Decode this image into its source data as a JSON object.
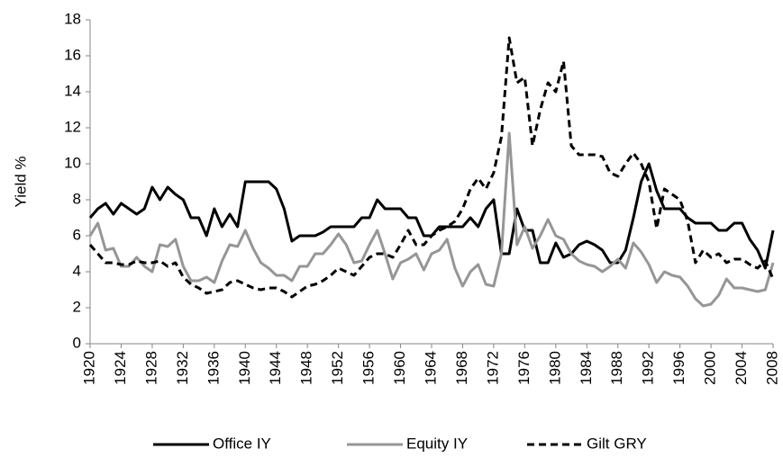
{
  "chart_data": {
    "type": "line",
    "y_label": "Yield %",
    "x": [
      1920,
      1921,
      1922,
      1923,
      1924,
      1925,
      1926,
      1927,
      1928,
      1929,
      1930,
      1931,
      1932,
      1933,
      1934,
      1935,
      1936,
      1937,
      1938,
      1939,
      1940,
      1941,
      1942,
      1943,
      1944,
      1945,
      1946,
      1947,
      1948,
      1949,
      1950,
      1951,
      1952,
      1953,
      1954,
      1955,
      1956,
      1957,
      1958,
      1959,
      1960,
      1961,
      1962,
      1963,
      1964,
      1965,
      1966,
      1967,
      1968,
      1969,
      1970,
      1971,
      1972,
      1973,
      1974,
      1975,
      1976,
      1977,
      1978,
      1979,
      1980,
      1981,
      1982,
      1983,
      1984,
      1985,
      1986,
      1987,
      1988,
      1989,
      1990,
      1991,
      1992,
      1993,
      1994,
      1995,
      1996,
      1997,
      1998,
      1999,
      2000,
      2001,
      2002,
      2003,
      2004,
      2005,
      2006,
      2007,
      2008
    ],
    "xlim": [
      1920,
      2008
    ],
    "xticks": [
      1920,
      1924,
      1928,
      1932,
      1936,
      1940,
      1944,
      1948,
      1952,
      1956,
      1960,
      1964,
      1968,
      1972,
      1976,
      1980,
      1984,
      1988,
      1992,
      1996,
      2000,
      2004,
      2008
    ],
    "ylim": [
      0,
      18
    ],
    "yticks": [
      0,
      2,
      4,
      6,
      8,
      10,
      12,
      14,
      16,
      18
    ],
    "series": [
      {
        "name": "Office IY",
        "color": "#000000",
        "dash": "solid",
        "values": [
          7.0,
          7.5,
          7.8,
          7.2,
          7.8,
          7.5,
          7.2,
          7.5,
          8.7,
          8.0,
          8.7,
          8.3,
          8.0,
          7.0,
          7.0,
          6.0,
          7.5,
          6.5,
          7.2,
          6.5,
          9.0,
          9.0,
          9.0,
          9.0,
          8.6,
          7.5,
          5.7,
          6.0,
          6.0,
          6.0,
          6.2,
          6.5,
          6.5,
          6.5,
          6.5,
          7.0,
          7.0,
          8.0,
          7.5,
          7.5,
          7.5,
          7.0,
          7.0,
          6.0,
          6.0,
          6.5,
          6.5,
          6.5,
          6.5,
          7.0,
          6.5,
          7.5,
          8.0,
          5.0,
          5.0,
          7.5,
          6.3,
          6.3,
          4.5,
          4.5,
          5.6,
          4.8,
          5.0,
          5.5,
          5.7,
          5.5,
          5.2,
          4.5,
          4.5,
          5.2,
          7.0,
          9.0,
          10.0,
          8.5,
          7.5,
          7.5,
          7.5,
          7.0,
          6.7,
          6.7,
          6.7,
          6.3,
          6.3,
          6.7,
          6.7,
          5.8,
          5.2,
          4.2,
          6.3
        ]
      },
      {
        "name": "Equity IY",
        "color": "#969696",
        "dash": "solid",
        "values": [
          6.0,
          6.7,
          5.2,
          5.3,
          4.3,
          4.3,
          4.8,
          4.3,
          4.0,
          5.5,
          5.4,
          5.8,
          4.3,
          3.5,
          3.5,
          3.7,
          3.4,
          4.6,
          5.5,
          5.4,
          6.3,
          5.3,
          4.5,
          4.2,
          3.8,
          3.8,
          3.5,
          4.3,
          4.3,
          5.0,
          5.0,
          5.5,
          6.1,
          5.5,
          4.5,
          4.6,
          5.5,
          6.3,
          5.0,
          3.6,
          4.5,
          4.7,
          5.0,
          4.1,
          5.0,
          5.2,
          5.8,
          4.2,
          3.2,
          4.0,
          4.4,
          3.3,
          3.2,
          5.0,
          11.7,
          5.5,
          6.5,
          5.3,
          6.0,
          6.9,
          6.0,
          5.8,
          5.0,
          4.6,
          4.4,
          4.3,
          4.0,
          4.3,
          4.7,
          4.2,
          5.6,
          5.1,
          4.4,
          3.4,
          4.0,
          3.8,
          3.7,
          3.2,
          2.5,
          2.1,
          2.2,
          2.7,
          3.6,
          3.1,
          3.1,
          3.0,
          2.9,
          3.0,
          4.5
        ]
      },
      {
        "name": "Gilt GRY",
        "color": "#000000",
        "dash": "dashed",
        "values": [
          5.5,
          5.0,
          4.5,
          4.5,
          4.4,
          4.4,
          4.6,
          4.5,
          4.5,
          4.6,
          4.3,
          4.5,
          3.7,
          3.3,
          3.1,
          2.8,
          2.9,
          3.0,
          3.4,
          3.5,
          3.3,
          3.1,
          3.0,
          3.1,
          3.1,
          2.9,
          2.6,
          2.9,
          3.2,
          3.3,
          3.5,
          3.8,
          4.2,
          4.0,
          3.8,
          4.3,
          4.8,
          5.0,
          5.0,
          4.8,
          5.5,
          6.3,
          5.5,
          5.5,
          6.0,
          6.3,
          6.5,
          6.8,
          7.5,
          8.6,
          9.2,
          8.6,
          9.5,
          11.5,
          17.0,
          14.5,
          14.8,
          11.0,
          13.0,
          14.5,
          14.0,
          15.7,
          11.0,
          10.5,
          10.5,
          10.5,
          10.4,
          9.5,
          9.3,
          10.0,
          10.6,
          10.0,
          9.0,
          6.4,
          8.6,
          8.3,
          8.0,
          6.8,
          4.5,
          5.2,
          4.8,
          5.0,
          4.5,
          4.7,
          4.7,
          4.4,
          4.2,
          4.6,
          3.6
        ]
      }
    ]
  }
}
